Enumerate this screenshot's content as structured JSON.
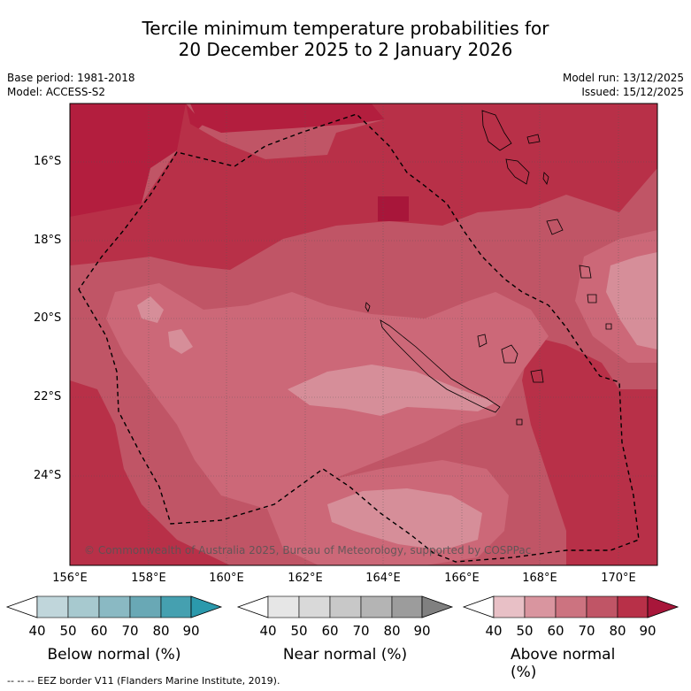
{
  "title": {
    "line1": "Tercile minimum temperature probabilities for",
    "line2": "20 December 2025 to 2 January 2026"
  },
  "meta": {
    "base_period": "Base period: 1981-2018",
    "model": "Model: ACCESS-S2",
    "model_run": "Model run: 13/12/2025",
    "issued": "Issued: 15/12/2025"
  },
  "map": {
    "lat_labels": [
      "16°S",
      "18°S",
      "20°S",
      "22°S",
      "24°S"
    ],
    "lon_labels": [
      "156°E",
      "158°E",
      "160°E",
      "162°E",
      "164°E",
      "166°E",
      "168°E",
      "170°E"
    ],
    "copyright": "© Commonwealth of Australia 2025, Bureau of Meteorology, supported by COSPPac"
  },
  "legends": [
    {
      "label": "Below normal (%)",
      "ticks": [
        "40",
        "50",
        "60",
        "70",
        "80",
        "90"
      ],
      "colors": [
        "#ffffff",
        "#c0d6db",
        "#a7c9cf",
        "#8ab9c3",
        "#69a8b5",
        "#45a0b0",
        "#2b99ac"
      ]
    },
    {
      "label": "Near normal (%)",
      "ticks": [
        "40",
        "50",
        "60",
        "70",
        "80",
        "90"
      ],
      "colors": [
        "#ffffff",
        "#e6e6e6",
        "#d9d9d9",
        "#c8c8c8",
        "#b4b4b4",
        "#9c9c9c",
        "#808080"
      ]
    },
    {
      "label": "Above normal (%)",
      "ticks": [
        "40",
        "50",
        "60",
        "70",
        "80",
        "90"
      ],
      "colors": [
        "#ffffff",
        "#e8c0c6",
        "#d9959f",
        "#cc7380",
        "#c05566",
        "#b83048",
        "#a8163a"
      ]
    }
  ],
  "footer": "--  --  -- EEZ border V11 (Flanders Marine Institute, 2019)."
}
